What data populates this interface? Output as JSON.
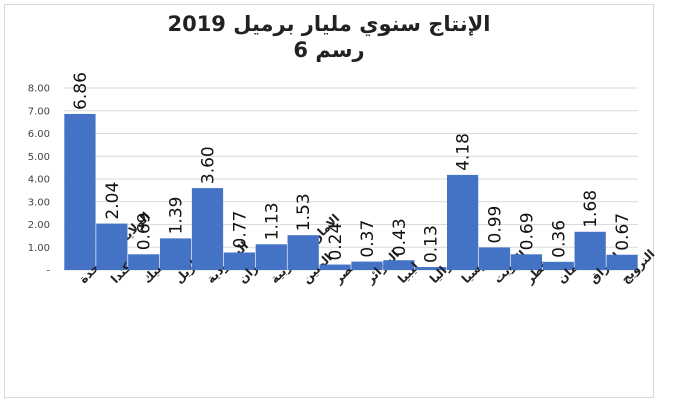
{
  "chart_data": {
    "type": "bar",
    "title": "الإنتاج سنوي مليار برميل 2019",
    "subtitle": "رسم 6",
    "categories": [
      "الولايات المتحدة",
      "كندا",
      "المكسيك",
      "البرازيل",
      "السعودية",
      "ايران",
      "الامارات العربية",
      "الصين",
      "مصر",
      "الجزائر",
      "ليبيا",
      "استراليا",
      "روسيا",
      "الكويت",
      "قطر",
      "عمان",
      "العراق",
      "النرويج"
    ],
    "values": [
      6.86,
      2.04,
      0.69,
      1.39,
      3.6,
      0.77,
      1.13,
      1.53,
      0.24,
      0.37,
      0.43,
      0.13,
      4.18,
      0.99,
      0.69,
      0.36,
      1.68,
      0.67
    ],
    "value_labels": [
      "6.86",
      "2.04",
      "0.69",
      "1.39",
      "3.60",
      "0.77",
      "1.13",
      "1.53",
      "0.24",
      "0.37",
      "0.43",
      "0.13",
      "4.18",
      "0.99",
      "0.69",
      "0.36",
      "1.68",
      "0.67"
    ],
    "yticks": [
      "-",
      "1.00",
      "2.00",
      "3.00",
      "4.00",
      "5.00",
      "6.00",
      "7.00",
      "8.00"
    ],
    "ylim": [
      0,
      8
    ],
    "grid": true,
    "bar_color": "#4472C4",
    "grid_color": "#d9d9d9"
  }
}
